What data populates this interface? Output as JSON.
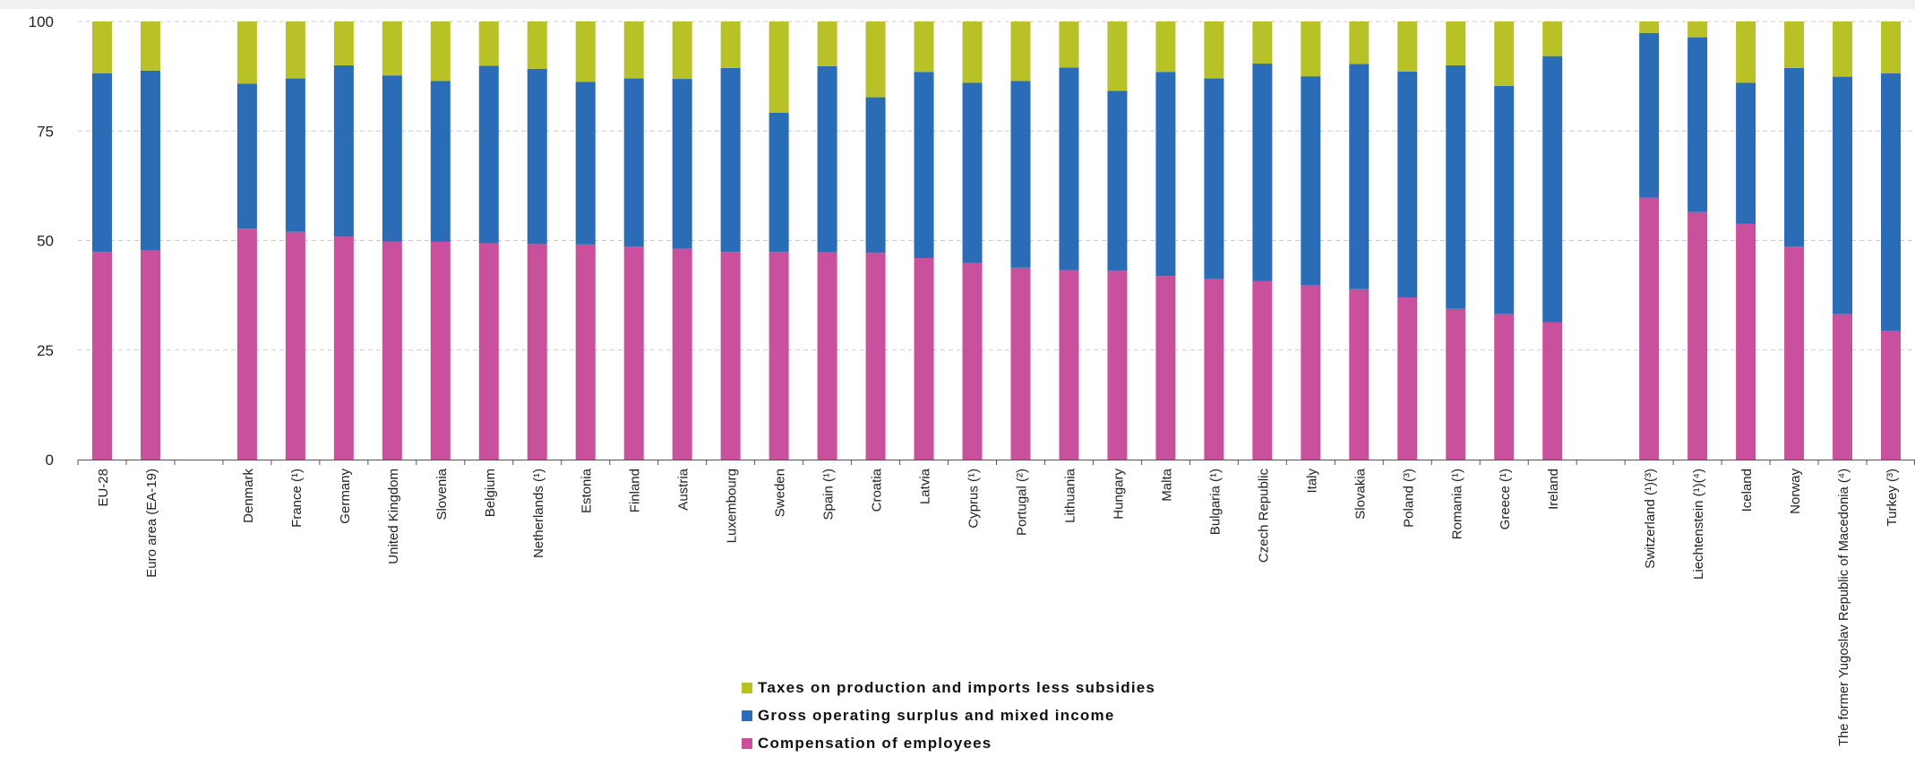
{
  "chart_data": {
    "type": "bar",
    "stacked": true,
    "title": "",
    "xlabel": "",
    "ylabel": "",
    "ylim": [
      0,
      100
    ],
    "yticks": [
      0,
      25,
      50,
      75,
      100
    ],
    "grid": true,
    "legend_position": "bottom-center",
    "categories": [
      "EU-28",
      "Euro area (EA-19)",
      "",
      "Denmark",
      "France (¹)",
      "Germany",
      "United Kingdom",
      "Slovenia",
      "Belgium",
      "Netherlands (¹)",
      "Estonia",
      "Finland",
      "Austria",
      "Luxembourg",
      "Sweden",
      "Spain (¹)",
      "Croatia",
      "Latvia",
      "Cyprus (¹)",
      "Portugal (²)",
      "Lithuania",
      "Hungary",
      "Malta",
      "Bulgaria (¹)",
      "Czech Republic",
      "Italy",
      "Slovakia",
      "Poland (³)",
      "Romania (¹)",
      "Greece (¹)",
      "Ireland",
      "",
      "Switzerland (¹)(³)",
      "Liechtenstein (¹)(⁴)",
      "Iceland",
      "Norway",
      "The former Yugoslav Republic of Macedonia (⁴)",
      "Turkey (³)"
    ],
    "series": [
      {
        "name": "Compensation of employees",
        "color": "#c8509c",
        "values": [
          47.4,
          47.7,
          null,
          52.7,
          52.0,
          50.9,
          49.8,
          49.7,
          49.4,
          49.2,
          49.1,
          48.6,
          48.1,
          47.4,
          47.4,
          47.3,
          47.2,
          46.0,
          44.9,
          43.8,
          43.2,
          43.1,
          41.9,
          41.3,
          40.8,
          39.8,
          38.9,
          37.0,
          34.4,
          33.2,
          31.3,
          null,
          59.8,
          56.5,
          53.8,
          48.6,
          33.2,
          29.3
        ]
      },
      {
        "name": "Gross operating surplus and mixed income",
        "color": "#2b6cb7",
        "values": [
          40.8,
          41.1,
          null,
          33.1,
          35.0,
          39.1,
          37.9,
          36.7,
          40.5,
          40.0,
          37.1,
          38.4,
          38.8,
          42.0,
          31.8,
          42.5,
          35.5,
          42.5,
          41.1,
          42.6,
          46.3,
          41.1,
          46.6,
          45.7,
          49.6,
          47.7,
          51.4,
          51.6,
          55.6,
          52.1,
          60.8,
          null,
          37.6,
          39.9,
          32.2,
          40.8,
          54.2,
          58.9
        ]
      },
      {
        "name": "Taxes on production and imports less subsidies",
        "color": "#b8c227",
        "values": [
          11.8,
          11.2,
          null,
          14.2,
          13.0,
          10.0,
          12.3,
          13.6,
          10.1,
          10.8,
          13.8,
          13.0,
          13.1,
          10.6,
          20.8,
          10.2,
          17.3,
          11.5,
          14.0,
          13.6,
          10.5,
          15.8,
          11.5,
          13.0,
          9.6,
          12.5,
          9.7,
          11.4,
          10.0,
          14.7,
          7.9,
          null,
          2.6,
          3.6,
          14.0,
          10.6,
          12.6,
          11.8
        ]
      }
    ]
  },
  "legend": {
    "items": [
      {
        "label": "Taxes on production and imports less subsidies",
        "color": "#b8c227"
      },
      {
        "label": "Gross operating surplus and mixed income",
        "color": "#2b6cb7"
      },
      {
        "label": "Compensation of employees",
        "color": "#c8509c"
      }
    ]
  }
}
